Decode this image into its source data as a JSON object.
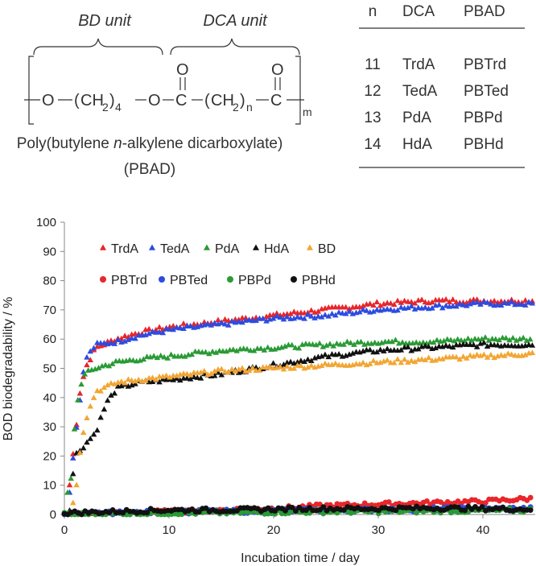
{
  "scheme": {
    "bd_unit": "BD unit",
    "dca_unit": "DCA unit",
    "formula": {
      "O1": "O",
      "CH2a": "CH",
      "sub2a": "2",
      "sub4": "4",
      "O2": "O",
      "O3": "O",
      "C1": "C",
      "carbonylO1": "O",
      "CH2b": "CH",
      "sub2b": "2",
      "subn": "n",
      "C2": "C",
      "carbonylO2": "O",
      "subm": "m"
    },
    "name_line1_pre": "Poly(butylene ",
    "name_line1_italic": "n",
    "name_line1_post": "-alkylene dicarboxylate)",
    "name_line2": "(PBAD)"
  },
  "table": {
    "headers": [
      "n",
      "DCA",
      "PBAD"
    ],
    "rows": [
      [
        "11",
        "TrdA",
        "PBTrd"
      ],
      [
        "12",
        "TedA",
        "PBTed"
      ],
      [
        "13",
        "PdA",
        "PBPd"
      ],
      [
        "14",
        "HdA",
        "PBHd"
      ]
    ]
  },
  "chart_data": {
    "type": "scatter",
    "title": "",
    "xlabel": "Incubation time / day",
    "ylabel": "BOD biodegradability / %",
    "xlim": [
      0,
      45
    ],
    "ylim": [
      0,
      100
    ],
    "xticks": [
      0,
      10,
      20,
      30,
      40
    ],
    "yticks": [
      0,
      10,
      20,
      30,
      40,
      50,
      60,
      70,
      80,
      90,
      100
    ],
    "legend_position": "top-left",
    "series": [
      {
        "name": "TrdA",
        "marker": "triangle",
        "color": "#e8262b",
        "points": [
          [
            0.5,
            10
          ],
          [
            1,
            26
          ],
          [
            1.5,
            42
          ],
          [
            2,
            50
          ],
          [
            3,
            57
          ],
          [
            5,
            60
          ],
          [
            7,
            62
          ],
          [
            10,
            64
          ],
          [
            15,
            66
          ],
          [
            20,
            68
          ],
          [
            25,
            70
          ],
          [
            30,
            72
          ],
          [
            35,
            73
          ],
          [
            40,
            73
          ],
          [
            45,
            73
          ]
        ]
      },
      {
        "name": "TedA",
        "marker": "triangle",
        "color": "#2b4ce0",
        "points": [
          [
            0.5,
            8
          ],
          [
            1,
            25
          ],
          [
            1.5,
            40
          ],
          [
            2,
            53
          ],
          [
            3,
            58
          ],
          [
            5,
            59
          ],
          [
            7,
            61
          ],
          [
            10,
            63
          ],
          [
            15,
            65
          ],
          [
            20,
            67
          ],
          [
            25,
            68
          ],
          [
            30,
            70
          ],
          [
            35,
            71
          ],
          [
            40,
            72
          ],
          [
            45,
            72
          ]
        ]
      },
      {
        "name": "PdA",
        "marker": "triangle",
        "color": "#2a9a35",
        "points": [
          [
            0.3,
            7
          ],
          [
            0.7,
            13
          ],
          [
            1,
            32
          ],
          [
            1.5,
            44
          ],
          [
            2,
            48
          ],
          [
            3,
            50
          ],
          [
            5,
            52
          ],
          [
            7,
            53
          ],
          [
            10,
            54
          ],
          [
            15,
            56
          ],
          [
            20,
            57
          ],
          [
            25,
            58
          ],
          [
            30,
            59
          ],
          [
            35,
            59
          ],
          [
            40,
            60
          ],
          [
            45,
            60
          ]
        ]
      },
      {
        "name": "HdA",
        "marker": "triangle",
        "color": "#111111",
        "points": [
          [
            0.5,
            2
          ],
          [
            1,
            20
          ],
          [
            2,
            24
          ],
          [
            3,
            28
          ],
          [
            4,
            38
          ],
          [
            5,
            43
          ],
          [
            7,
            45
          ],
          [
            10,
            46
          ],
          [
            15,
            48
          ],
          [
            20,
            51
          ],
          [
            25,
            54
          ],
          [
            30,
            56
          ],
          [
            35,
            57
          ],
          [
            40,
            58
          ],
          [
            45,
            58
          ]
        ]
      },
      {
        "name": "BD",
        "marker": "triangle",
        "color": "#f2a633",
        "points": [
          [
            0.5,
            1
          ],
          [
            1,
            5
          ],
          [
            1.5,
            22
          ],
          [
            2,
            32
          ],
          [
            3,
            42
          ],
          [
            5,
            45
          ],
          [
            7,
            46
          ],
          [
            10,
            47
          ],
          [
            15,
            49
          ],
          [
            20,
            50
          ],
          [
            25,
            51
          ],
          [
            30,
            52
          ],
          [
            35,
            53
          ],
          [
            40,
            54
          ],
          [
            45,
            55
          ]
        ]
      },
      {
        "name": "PBTrd",
        "marker": "circle",
        "color": "#e8262b",
        "points": [
          [
            0,
            0
          ],
          [
            5,
            0.5
          ],
          [
            10,
            1
          ],
          [
            15,
            1.5
          ],
          [
            20,
            2
          ],
          [
            25,
            3
          ],
          [
            30,
            3.5
          ],
          [
            35,
            4
          ],
          [
            40,
            4.5
          ],
          [
            45,
            5.5
          ]
        ]
      },
      {
        "name": "PBTed",
        "marker": "circle",
        "color": "#2b4ce0",
        "points": [
          [
            0,
            0
          ],
          [
            5,
            0.5
          ],
          [
            10,
            0.8
          ],
          [
            15,
            1
          ],
          [
            20,
            1.2
          ],
          [
            25,
            1.4
          ],
          [
            30,
            1.6
          ],
          [
            35,
            1.8
          ],
          [
            40,
            2
          ],
          [
            45,
            2
          ]
        ]
      },
      {
        "name": "PBPd",
        "marker": "circle",
        "color": "#2a9a35",
        "points": [
          [
            0,
            0
          ],
          [
            5,
            0.3
          ],
          [
            10,
            0.5
          ],
          [
            15,
            0.6
          ],
          [
            20,
            0.8
          ],
          [
            25,
            1
          ],
          [
            30,
            1
          ],
          [
            35,
            1.2
          ],
          [
            40,
            1.3
          ],
          [
            45,
            1.5
          ]
        ]
      },
      {
        "name": "PBHd",
        "marker": "circle",
        "color": "#111111",
        "points": [
          [
            0,
            0.5
          ],
          [
            5,
            1
          ],
          [
            10,
            1.5
          ],
          [
            15,
            1.5
          ],
          [
            20,
            1.8
          ],
          [
            25,
            2
          ],
          [
            30,
            2
          ],
          [
            35,
            2.2
          ],
          [
            40,
            2
          ],
          [
            45,
            1.8
          ]
        ]
      }
    ]
  }
}
